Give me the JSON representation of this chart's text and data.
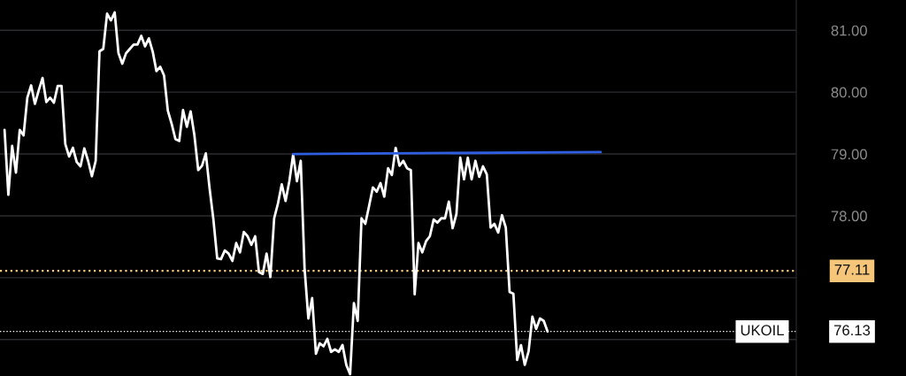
{
  "chart_data": {
    "type": "line",
    "categories": [
      null,
      null,
      null,
      null,
      null,
      null,
      null,
      null,
      null,
      null,
      null,
      null,
      null,
      null,
      null,
      null,
      null,
      null,
      null,
      null,
      null,
      null,
      null,
      null,
      null,
      null,
      null,
      null,
      null,
      null,
      null,
      null,
      null,
      null,
      null,
      null,
      null,
      null,
      null,
      null,
      null,
      null,
      null,
      null,
      null,
      null,
      null,
      null,
      null,
      null,
      null,
      null,
      null,
      null,
      null,
      null,
      null,
      null,
      null,
      null,
      null,
      null,
      null,
      null,
      null,
      null,
      null,
      null,
      null,
      null,
      null,
      null,
      null,
      null,
      null,
      null,
      null,
      null,
      null,
      null,
      null,
      null,
      null,
      null,
      null,
      null,
      null,
      null,
      null,
      null,
      null,
      null,
      null,
      null,
      null,
      null,
      null,
      null,
      null,
      null,
      null,
      null,
      null,
      null,
      null,
      null,
      null,
      null,
      null,
      null,
      null,
      null,
      null,
      null,
      null,
      null,
      null,
      null,
      null,
      null,
      null,
      null,
      null,
      null,
      null,
      null,
      null,
      null,
      null,
      null,
      null,
      null,
      null,
      null,
      null,
      null,
      null,
      null,
      null,
      null,
      null,
      null,
      null,
      null,
      null,
      null,
      null,
      null,
      null,
      null,
      null,
      null,
      null,
      null,
      null,
      null,
      null,
      null,
      null,
      null,
      null,
      null,
      null,
      null,
      null,
      null,
      null,
      null,
      null,
      null,
      null,
      null,
      null,
      null,
      null,
      null,
      null,
      null,
      null,
      null,
      null,
      null,
      null,
      null,
      null,
      null,
      null,
      null,
      null,
      null,
      null,
      null,
      null,
      null,
      null,
      null,
      null,
      null,
      null,
      null,
      null,
      null,
      null,
      null,
      null,
      null,
      null,
      null,
      null
    ],
    "series": [
      {
        "color": "#ffffff",
        "values": [
          79.39,
          78.34,
          79.13,
          78.7,
          79.39,
          79.3,
          79.91,
          80.11,
          79.81,
          80.03,
          80.23,
          79.84,
          79.91,
          79.83,
          80.1,
          80.1,
          79.16,
          78.96,
          79.1,
          78.87,
          78.8,
          79.09,
          78.89,
          78.64,
          78.89,
          80.66,
          80.7,
          81.27,
          81.16,
          81.29,
          80.63,
          80.46,
          80.63,
          80.7,
          80.77,
          80.77,
          80.91,
          80.74,
          80.87,
          80.66,
          80.34,
          80.41,
          80.27,
          79.7,
          79.49,
          79.24,
          79.21,
          79.71,
          79.44,
          79.69,
          79.3,
          78.74,
          78.81,
          79.01,
          78.44,
          77.94,
          77.31,
          77.3,
          77.44,
          77.39,
          77.27,
          77.56,
          77.41,
          77.74,
          77.67,
          77.53,
          77.67,
          77.09,
          77.06,
          77.39,
          77.01,
          77.96,
          78.2,
          78.51,
          78.24,
          78.56,
          78.99,
          78.56,
          78.89,
          77.16,
          76.34,
          76.67,
          75.77,
          75.94,
          75.89,
          76.01,
          75.8,
          75.84,
          75.8,
          75.91,
          75.59,
          75.44,
          76.59,
          76.3,
          77.96,
          77.87,
          78.16,
          78.46,
          78.39,
          78.53,
          78.31,
          78.77,
          78.66,
          79.1,
          78.81,
          78.89,
          78.77,
          78.74,
          76.73,
          77.56,
          77.41,
          77.59,
          77.67,
          77.94,
          77.89,
          77.96,
          77.96,
          78.23,
          77.8,
          78.03,
          78.94,
          78.59,
          78.94,
          78.59,
          78.89,
          78.63,
          78.8,
          78.67,
          77.81,
          77.87,
          77.73,
          78.01,
          77.81,
          76.77,
          76.74,
          75.67,
          75.91,
          75.59,
          75.81,
          76.37,
          76.17,
          76.34,
          76.3,
          76.13,
          null,
          null,
          null,
          null,
          null,
          null,
          null,
          null,
          null,
          null,
          null,
          null,
          null,
          null,
          null,
          null,
          null,
          null,
          null,
          null,
          null,
          null,
          null,
          null,
          null,
          null,
          null,
          null,
          null,
          null,
          null,
          null,
          null,
          null,
          null,
          null,
          null,
          null,
          null,
          null,
          null,
          null,
          null,
          null,
          null,
          null,
          null,
          null,
          null,
          null,
          null,
          null,
          null,
          null,
          null,
          null,
          null,
          null,
          null,
          null,
          null,
          null,
          null,
          null,
          null
        ]
      },
      {
        "color": "#2f5fe0",
        "values": [
          null,
          null,
          null,
          null,
          null,
          null,
          null,
          null,
          null,
          null,
          null,
          null,
          null,
          null,
          null,
          null,
          null,
          null,
          null,
          null,
          null,
          null,
          null,
          null,
          null,
          null,
          null,
          null,
          null,
          null,
          null,
          null,
          null,
          null,
          null,
          null,
          null,
          null,
          null,
          null,
          null,
          null,
          null,
          null,
          null,
          null,
          null,
          null,
          null,
          null,
          null,
          null,
          null,
          null,
          null,
          null,
          null,
          null,
          null,
          null,
          null,
          null,
          null,
          null,
          null,
          null,
          null,
          null,
          null,
          null,
          null,
          null,
          null,
          null,
          null,
          null,
          79.0,
          null,
          null,
          null,
          null,
          null,
          null,
          null,
          null,
          null,
          null,
          null,
          null,
          null,
          null,
          null,
          null,
          null,
          null,
          null,
          null,
          null,
          null,
          null,
          null,
          null,
          null,
          null,
          null,
          null,
          null,
          null,
          null,
          null,
          null,
          null,
          null,
          null,
          null,
          null,
          null,
          null,
          null,
          null,
          null,
          null,
          null,
          null,
          null,
          null,
          null,
          null,
          null,
          null,
          null,
          null,
          null,
          null,
          null,
          null,
          null,
          null,
          null,
          null,
          null,
          null,
          null,
          null,
          null,
          null,
          null,
          null,
          null,
          null,
          null,
          null,
          null,
          null,
          null,
          null,
          null,
          79.03,
          null,
          null,
          null,
          null,
          null,
          null,
          null,
          null,
          null,
          null,
          null,
          null,
          null,
          null,
          null,
          null,
          null,
          null,
          null,
          null,
          null,
          null,
          null,
          null,
          null,
          null,
          null,
          null,
          null,
          null,
          null,
          null,
          null,
          null,
          null,
          null,
          null,
          null,
          null,
          null,
          null,
          null,
          null,
          null,
          null,
          null,
          null,
          null,
          null,
          null,
          null
        ]
      }
    ],
    "ylim": [
      75.41,
      81.49
    ],
    "yticks": [
      {
        "value": 76,
        "label": null
      },
      {
        "value": 77,
        "label": null
      },
      {
        "value": 78,
        "label": "78.00"
      },
      {
        "value": 79,
        "label": "79.00"
      },
      {
        "value": 80,
        "label": "80.00"
      },
      {
        "value": 81,
        "label": "81.00"
      }
    ],
    "tick_labels": "y",
    "grid": "y",
    "line_style": "solid",
    "ref_lines": [
      {
        "axis": "y",
        "value": 77.11,
        "label": "77.11",
        "color": "#f5c67a",
        "line_style": "dotted"
      },
      {
        "axis": "y",
        "value": 76.13,
        "label": "76.13",
        "color": "#ffffff",
        "line_style": "dotted"
      }
    ],
    "annotations": [
      "UKOIL"
    ]
  }
}
